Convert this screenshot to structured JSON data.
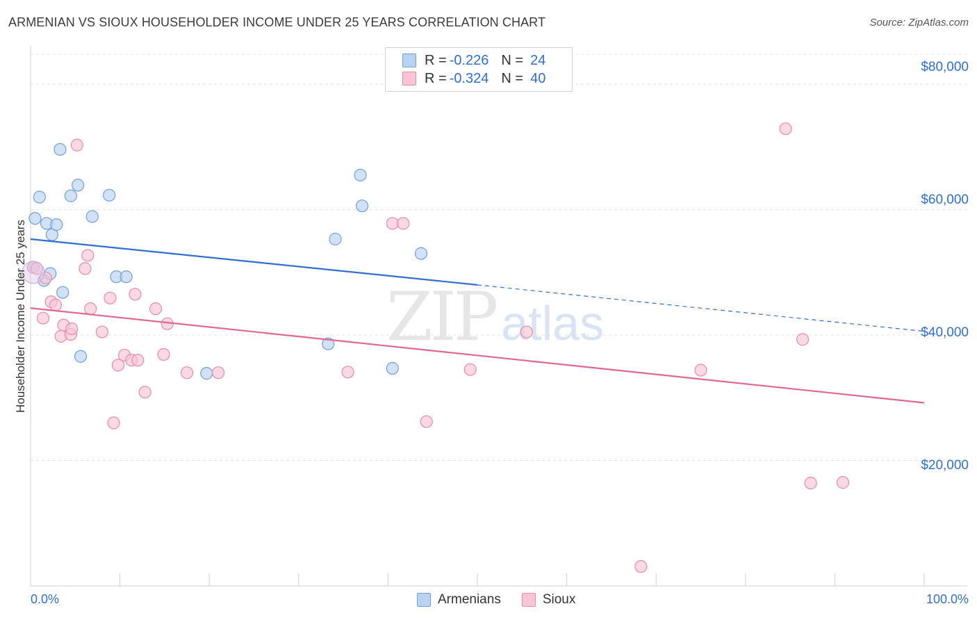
{
  "title": "ARMENIAN VS SIOUX HOUSEHOLDER INCOME UNDER 25 YEARS CORRELATION CHART",
  "source": "Source: ZipAtlas.com",
  "watermark": {
    "zip": "ZIP",
    "atlas": "atlas"
  },
  "colors": {
    "armenians_fill": "#b9d3f3",
    "armenians_stroke": "#6f9fdc",
    "armenians_line": "#2f6fd1",
    "sioux_fill": "#f8c5d5",
    "sioux_stroke": "#e98aa9",
    "sioux_line": "#e2678f",
    "axis_text": "#2f6fd1"
  },
  "legend": {
    "rows": [
      {
        "r_label": "R =",
        "r_value": "-0.226",
        "n_label": "N =",
        "n_value": "24"
      },
      {
        "r_label": "R =",
        "r_value": "-0.324",
        "n_label": "N =",
        "n_value": "40"
      }
    ]
  },
  "chart_data": {
    "type": "scatter",
    "title": "ARMENIAN VS SIOUX HOUSEHOLDER INCOME UNDER 25 YEARS CORRELATION CHART",
    "xlabel": "",
    "ylabel": "Householder Income Under 25 years",
    "xlim": [
      0,
      100
    ],
    "ylim": [
      0,
      85000
    ],
    "x_tick_labels": [
      "0.0%",
      "100.0%"
    ],
    "y_ticks": [
      20000,
      40000,
      60000,
      80000
    ],
    "y_tick_labels": [
      "$20,000",
      "$40,000",
      "$60,000",
      "$80,000"
    ],
    "grid": true,
    "legend_position": "top-center",
    "series": [
      {
        "name": "Armenians",
        "points": [
          [
            0.3,
            50800
          ],
          [
            0.5,
            58600
          ],
          [
            1.0,
            62000
          ],
          [
            1.5,
            48700
          ],
          [
            1.8,
            57800
          ],
          [
            2.2,
            49800
          ],
          [
            2.4,
            56000
          ],
          [
            2.9,
            57600
          ],
          [
            3.3,
            69600
          ],
          [
            3.6,
            46800
          ],
          [
            4.5,
            62200
          ],
          [
            5.3,
            63900
          ],
          [
            5.6,
            36600
          ],
          [
            6.9,
            58900
          ],
          [
            8.8,
            62300
          ],
          [
            9.6,
            49300
          ],
          [
            10.7,
            49300
          ],
          [
            19.7,
            33900
          ],
          [
            33.3,
            38600
          ],
          [
            34.1,
            55300
          ],
          [
            36.9,
            65500
          ],
          [
            37.1,
            60600
          ],
          [
            40.5,
            34700
          ],
          [
            43.7,
            53000
          ]
        ],
        "trend": {
          "x": [
            0,
            50,
            100
          ],
          "y": [
            55300,
            48000,
            40600
          ],
          "solid_until": 50
        }
      },
      {
        "name": "Sioux",
        "points": [
          [
            0.3,
            50800
          ],
          [
            0.7,
            50600
          ],
          [
            1.4,
            42700
          ],
          [
            1.7,
            49100
          ],
          [
            2.3,
            45300
          ],
          [
            2.8,
            44800
          ],
          [
            3.4,
            39800
          ],
          [
            3.7,
            41600
          ],
          [
            4.5,
            40100
          ],
          [
            4.6,
            41000
          ],
          [
            5.2,
            70300
          ],
          [
            6.1,
            50600
          ],
          [
            6.4,
            52700
          ],
          [
            6.7,
            44200
          ],
          [
            8.0,
            40500
          ],
          [
            8.9,
            45900
          ],
          [
            9.3,
            26000
          ],
          [
            9.8,
            35200
          ],
          [
            10.5,
            36800
          ],
          [
            11.3,
            36000
          ],
          [
            11.7,
            46500
          ],
          [
            12.0,
            36000
          ],
          [
            12.8,
            30900
          ],
          [
            14.0,
            44200
          ],
          [
            14.9,
            36900
          ],
          [
            15.3,
            41800
          ],
          [
            17.5,
            34000
          ],
          [
            21.0,
            34000
          ],
          [
            35.5,
            34100
          ],
          [
            40.5,
            57800
          ],
          [
            41.7,
            57800
          ],
          [
            44.3,
            26200
          ],
          [
            49.2,
            34500
          ],
          [
            55.5,
            40500
          ],
          [
            68.3,
            3100
          ],
          [
            75.0,
            34400
          ],
          [
            84.5,
            72900
          ],
          [
            86.4,
            39300
          ],
          [
            87.3,
            16400
          ],
          [
            90.9,
            16500
          ]
        ],
        "trend": {
          "x": [
            0,
            100
          ],
          "y": [
            44300,
            29200
          ]
        }
      }
    ]
  }
}
